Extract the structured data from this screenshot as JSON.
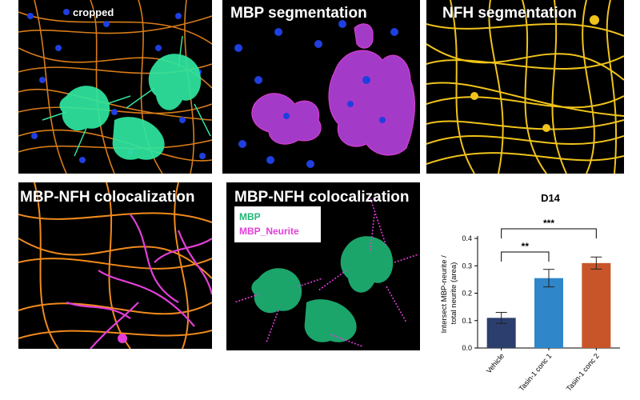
{
  "panels": {
    "cropped": {
      "title": "cropped"
    },
    "mbp_segmentation": {
      "title": "MBP segmentation"
    },
    "nfh_segmentation": {
      "title": "NFH segmentation"
    },
    "mbp_nfh_colocalization_1": {
      "title": "MBP-NFH colocalization"
    },
    "mbp_nfh_colocalization_2": {
      "title": "MBP-NFH colocalization",
      "legend": [
        {
          "label": "MBP",
          "color": "#1fb777"
        },
        {
          "label": "MBP_Neurite",
          "color": "#e23fd8"
        }
      ]
    }
  },
  "colors": {
    "neurite_orange": "#f08a1c",
    "neurite_yellow": "#f0c41a",
    "mbp_green": "#2fe6a0",
    "mbp_magenta": "#a43bc8",
    "nuclei_blue": "#1f3fe0",
    "neurite_magenta": "#e23fd8"
  },
  "chart_data": {
    "type": "bar",
    "title": "D14",
    "ylabel": "Intersect MBP-neurite / total neurite (area)",
    "xlabel": "",
    "categories": [
      "Vehicle",
      "Tasin-1 conc 1",
      "Tasin-1 conc 2"
    ],
    "values": [
      0.11,
      0.255,
      0.31
    ],
    "errors": [
      0.02,
      0.032,
      0.022
    ],
    "colors": [
      "#2c3e6e",
      "#2f86c9",
      "#c8552a"
    ],
    "ylim": [
      0,
      0.4
    ],
    "yticks": [
      "0.0",
      "0.1",
      "0.2",
      "0.3",
      "0.4"
    ],
    "significance": [
      {
        "from": 0,
        "to": 1,
        "label": "**"
      },
      {
        "from": 0,
        "to": 2,
        "label": "***"
      }
    ],
    "grid": false
  }
}
